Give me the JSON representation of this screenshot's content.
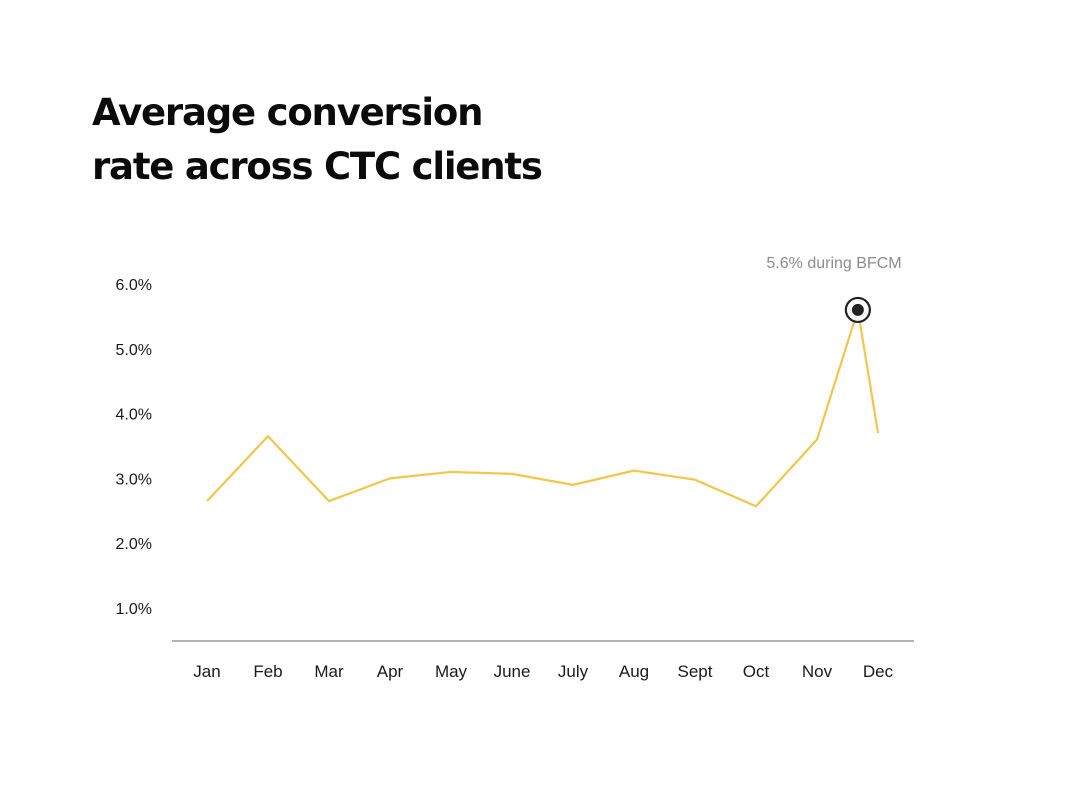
{
  "title_lines": [
    "Average conversion",
    "rate across CTC clients"
  ],
  "chart_data": {
    "type": "line",
    "title": "Average conversion rate across CTC clients",
    "categories": [
      "Jan",
      "Feb",
      "Mar",
      "Apr",
      "May",
      "June",
      "July",
      "Aug",
      "Sept",
      "Oct",
      "Nov",
      "Dec"
    ],
    "series": [
      {
        "x": [
          "Jan",
          "Feb",
          "Mar",
          "Apr",
          "May",
          "June",
          "July",
          "Aug",
          "Sept",
          "Oct",
          "Nov",
          "BFCM",
          "Dec"
        ],
        "values": [
          2.65,
          3.65,
          2.65,
          3.0,
          3.1,
          3.07,
          2.9,
          3.12,
          2.98,
          2.57,
          3.6,
          5.6,
          3.7
        ]
      }
    ],
    "ylim": [
      0.5,
      6.0
    ],
    "yticks": [
      "1.0%",
      "2.0%",
      "3.0%",
      "4.0%",
      "5.0%",
      "6.0%"
    ],
    "grid": false,
    "annotation": {
      "text": "5.6% during BFCM",
      "point_label": "BFCM",
      "value": 5.6
    },
    "colors": {
      "line": "#f2c54b",
      "marker": "#222222",
      "axis": "#9a9a9a"
    }
  }
}
